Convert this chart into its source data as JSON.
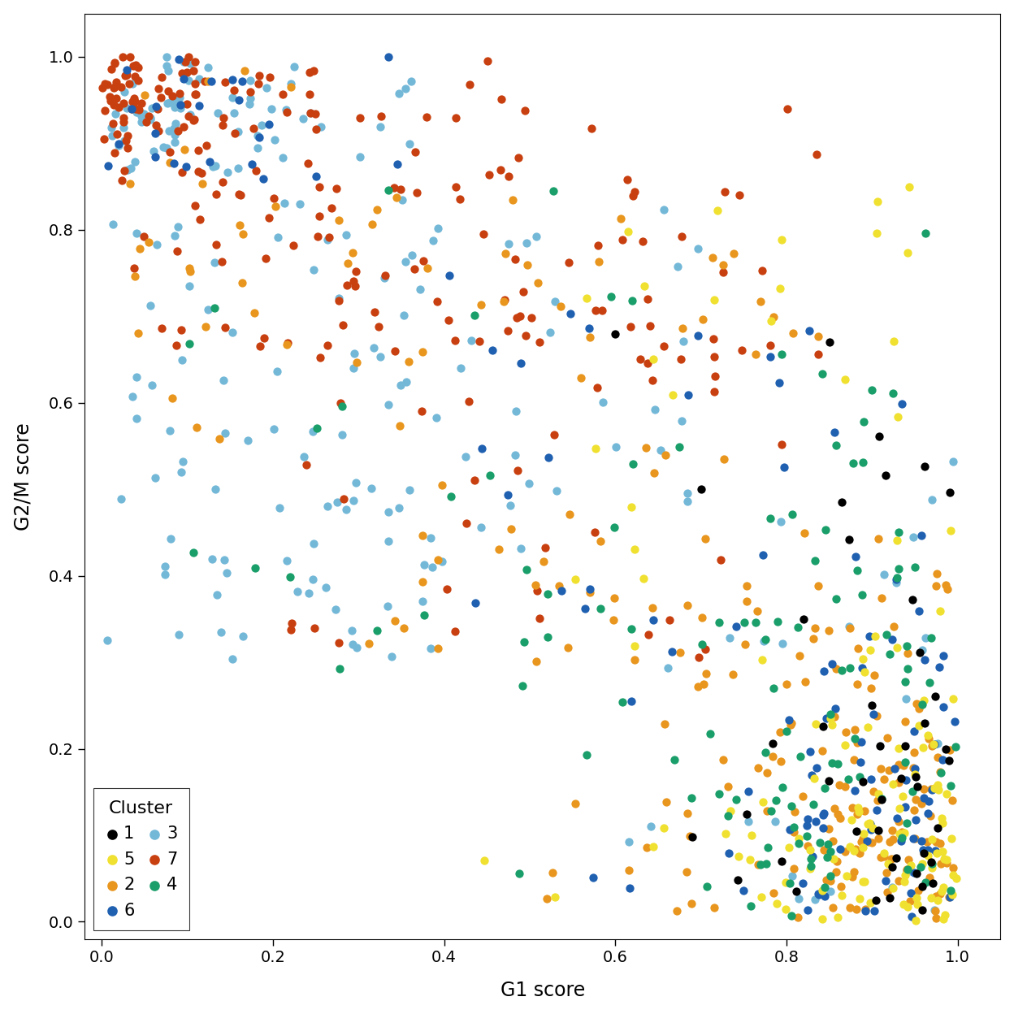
{
  "cluster_colors": {
    "1": "#000000",
    "2": "#E8961E",
    "3": "#74B8D8",
    "4": "#1A9E6A",
    "5": "#F0E030",
    "6": "#2060B0",
    "7": "#C84010"
  },
  "xlabel": "G1 score",
  "ylabel": "G2/M score",
  "legend_title": "Cluster",
  "xlim": [
    -0.02,
    1.05
  ],
  "ylim": [
    -0.02,
    1.05
  ],
  "xticks": [
    0.0,
    0.2,
    0.4,
    0.6,
    0.8,
    1.0
  ],
  "yticks": [
    0.0,
    0.2,
    0.4,
    0.6,
    0.8,
    1.0
  ],
  "point_size": 55,
  "background_color": "#ffffff",
  "legend_fontsize": 15,
  "axis_fontsize": 17,
  "tick_fontsize": 14
}
